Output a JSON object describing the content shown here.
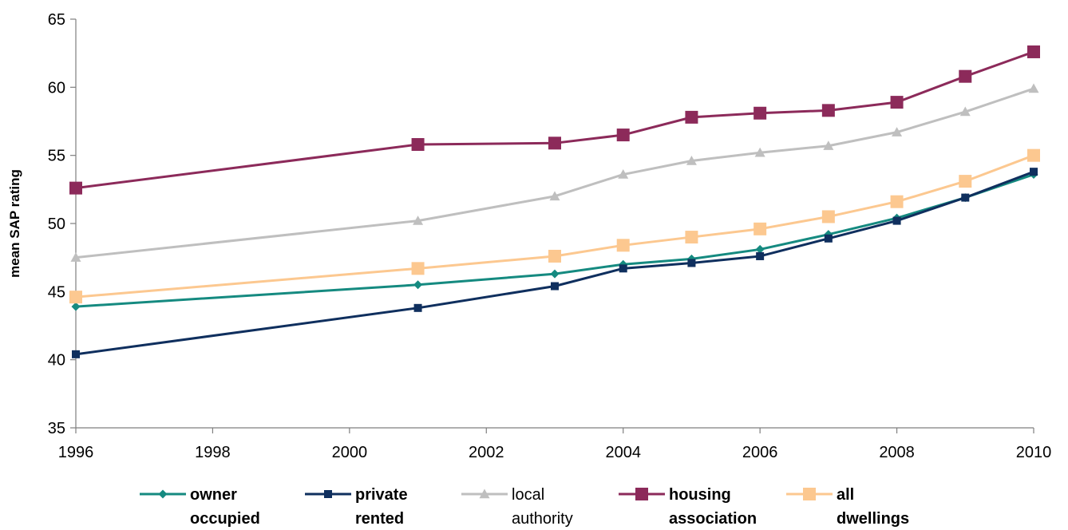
{
  "chart_data": {
    "type": "line",
    "title": "",
    "xlabel": "",
    "ylabel": "mean SAP rating",
    "xlim": [
      1996,
      2010
    ],
    "ylim": [
      35,
      65
    ],
    "x_ticks": [
      "1996",
      "1998",
      "2000",
      "2002",
      "2004",
      "2006",
      "2008",
      "2010"
    ],
    "y_ticks": [
      "35",
      "40",
      "45",
      "50",
      "55",
      "60",
      "65"
    ],
    "grid": false,
    "legend_position": "bottom",
    "x": [
      1996,
      2001,
      2003,
      2004,
      2005,
      2006,
      2007,
      2008,
      2009,
      2010
    ],
    "series": [
      {
        "name_lines": [
          "owner",
          "occupied"
        ],
        "name_bold": true,
        "color": "#158a80",
        "marker": "diamond",
        "values": [
          43.9,
          45.5,
          46.3,
          47.0,
          47.4,
          48.1,
          49.2,
          50.4,
          51.9,
          53.6
        ]
      },
      {
        "name_lines": [
          "private",
          "rented"
        ],
        "name_bold": true,
        "color": "#0f2f5e",
        "marker": "square",
        "values": [
          40.4,
          43.8,
          45.4,
          46.7,
          47.1,
          47.6,
          48.9,
          50.2,
          51.9,
          53.8
        ]
      },
      {
        "name_lines": [
          "local",
          "authority"
        ],
        "name_bold": false,
        "color": "#bfbfbf",
        "marker": "triangle",
        "values": [
          47.5,
          50.2,
          52.0,
          53.6,
          54.6,
          55.2,
          55.7,
          56.7,
          58.2,
          59.9
        ]
      },
      {
        "name_lines": [
          "housing",
          "association"
        ],
        "name_bold": true,
        "color": "#8c2a5a",
        "marker": "square-large",
        "values": [
          52.6,
          55.8,
          55.9,
          56.5,
          57.8,
          58.1,
          58.3,
          58.9,
          60.8,
          62.6
        ]
      },
      {
        "name_lines": [
          "all",
          "dwellings"
        ],
        "name_bold": true,
        "color": "#fcc890",
        "marker": "square-large",
        "values": [
          44.6,
          46.7,
          47.6,
          48.4,
          49.0,
          49.6,
          50.5,
          51.6,
          53.1,
          55.0
        ]
      }
    ]
  }
}
